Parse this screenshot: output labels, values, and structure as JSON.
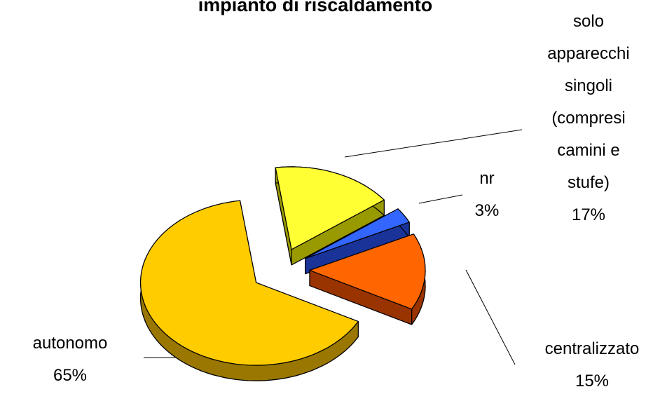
{
  "chart_data": {
    "type": "pie",
    "title": "impianto di riscaldamento",
    "categories": [
      "solo apparecchi singoli (compresi camini e stufe)",
      "nr",
      "centralizzato",
      "autonomo"
    ],
    "values": [
      17,
      3,
      15,
      65
    ],
    "value_labels": [
      "17%",
      "3%",
      "15%",
      "65%"
    ],
    "colors": [
      "#ffff33",
      "#3366ff",
      "#ff6600",
      "#ffcc00"
    ],
    "side_colors": [
      "#999900",
      "#1a3399",
      "#993300",
      "#997700"
    ]
  }
}
